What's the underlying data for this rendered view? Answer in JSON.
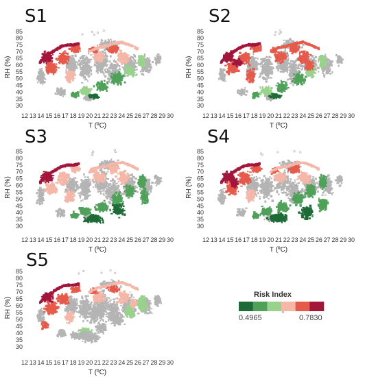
{
  "chart_data": {
    "type": "scatter",
    "panels": [
      {
        "label": "S1",
        "xlabel": "T (ºC)",
        "ylabel": "RH (%)"
      },
      {
        "label": "S2",
        "xlabel": "T (ºC)",
        "ylabel": "RH (%)"
      },
      {
        "label": "S3",
        "xlabel": "T (ºC)",
        "ylabel": "RH (%)"
      },
      {
        "label": "S4",
        "xlabel": "T (ºC)",
        "ylabel": "RH (%)"
      },
      {
        "label": "S5",
        "xlabel": "T (ºC)",
        "ylabel": "RH (%)"
      }
    ],
    "xlim": [
      12,
      30
    ],
    "ylim": [
      27,
      90
    ],
    "x_ticks": [
      "12",
      "13",
      "14",
      "15",
      "16",
      "17",
      "18",
      "19",
      "20",
      "21",
      "22",
      "23",
      "24",
      "25",
      "26",
      "27",
      "28",
      "29",
      "30"
    ],
    "y_ticks": [
      "30",
      "35",
      "40",
      "45",
      "50",
      "55",
      "60",
      "65",
      "70",
      "75",
      "80",
      "85"
    ],
    "legend": {
      "title": "Risk Index",
      "min_label": "0.4965",
      "max_label": "0.7830",
      "colors": [
        "#1e6b38",
        "#4fa15a",
        "#99d28c",
        "#f4b7a8",
        "#e55a4b",
        "#a3163c"
      ]
    },
    "no_data_color": "#b4b4b4"
  }
}
